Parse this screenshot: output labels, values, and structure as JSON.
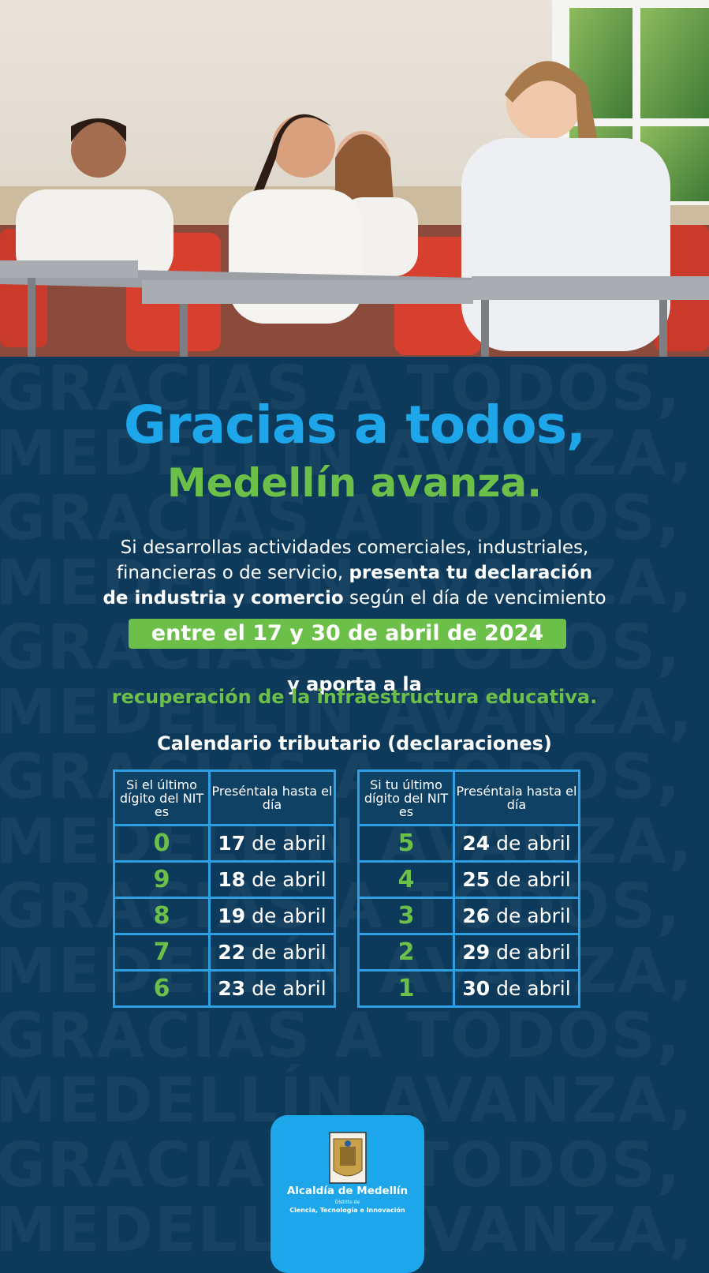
{
  "watermark": [
    "GRACIAS A TODOS,",
    "MEDELLÍN AVANZA,"
  ],
  "heading": {
    "line1": "Gracias a todos,",
    "line2": "Medellín avanza."
  },
  "intro": [
    [
      {
        "text": "Si desarrollas actividades comerciales, industriales,",
        "bold": false
      }
    ],
    [
      {
        "text": "financieras o de servicio, ",
        "bold": false
      },
      {
        "text": "presenta tu declaración",
        "bold": true
      }
    ],
    [
      {
        "text": "de industria y comercio",
        "bold": true
      },
      {
        "text": " según el día de vencimiento",
        "bold": false
      }
    ]
  ],
  "highlight": "entre el 17 y 30 de abril de 2024",
  "cta": {
    "line1": "y aporta a la",
    "line2": "recuperación de la infraestructura educativa."
  },
  "calendar": {
    "title": "Calendario tributario (declaraciones)",
    "tables": [
      {
        "headers": [
          "Si el último dígito del NIT es",
          "Preséntala hasta el día"
        ],
        "rows": [
          {
            "digit": 0,
            "day": 17,
            "month": "de abril"
          },
          {
            "digit": 9,
            "day": 18,
            "month": "de abril"
          },
          {
            "digit": 8,
            "day": 19,
            "month": "de abril"
          },
          {
            "digit": 7,
            "day": 22,
            "month": "de abril"
          },
          {
            "digit": 6,
            "day": 23,
            "month": "de abril"
          }
        ]
      },
      {
        "headers": [
          "Si tu último dígito del NIT es",
          "Preséntala hasta el día"
        ],
        "rows": [
          {
            "digit": 5,
            "day": 24,
            "month": "de abril"
          },
          {
            "digit": 4,
            "day": 25,
            "month": "de abril"
          },
          {
            "digit": 3,
            "day": 26,
            "month": "de abril"
          },
          {
            "digit": 2,
            "day": 29,
            "month": "de abril"
          },
          {
            "digit": 1,
            "day": 30,
            "month": "de abril"
          }
        ]
      }
    ]
  },
  "footer": {
    "name": "Alcaldía de Medellín",
    "sub1": "Distrito de",
    "sub2": "Ciencia, Tecnología e Innovación"
  }
}
